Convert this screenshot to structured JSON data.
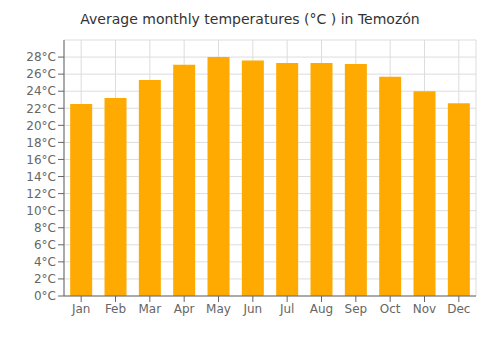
{
  "chart_data": {
    "type": "bar",
    "title": "Average monthly temperatures (°C ) in Temozón",
    "categories": [
      "Jan",
      "Feb",
      "Mar",
      "Apr",
      "May",
      "Jun",
      "Jul",
      "Aug",
      "Sep",
      "Oct",
      "Nov",
      "Dec"
    ],
    "values": [
      22.5,
      23.2,
      25.3,
      27.1,
      28.0,
      27.6,
      27.3,
      27.3,
      27.2,
      25.7,
      24.0,
      22.6
    ],
    "color": "#FFAA00",
    "ylim": [
      0,
      30
    ],
    "yticks": [
      {
        "value": 0,
        "label": "0°C"
      },
      {
        "value": 2,
        "label": "2°C"
      },
      {
        "value": 4,
        "label": "4°C"
      },
      {
        "value": 6,
        "label": "6°C"
      },
      {
        "value": 8,
        "label": "8°C"
      },
      {
        "value": 10,
        "label": "10°C"
      },
      {
        "value": 12,
        "label": "12°C"
      },
      {
        "value": 14,
        "label": "14°C"
      },
      {
        "value": 16,
        "label": "16°C"
      },
      {
        "value": 18,
        "label": "18°C"
      },
      {
        "value": 20,
        "label": "20°C"
      },
      {
        "value": 22,
        "label": "22°C"
      },
      {
        "value": 24,
        "label": "24°C"
      },
      {
        "value": 26,
        "label": "26°C"
      },
      {
        "value": 28,
        "label": "28°C"
      }
    ],
    "grid": true
  }
}
